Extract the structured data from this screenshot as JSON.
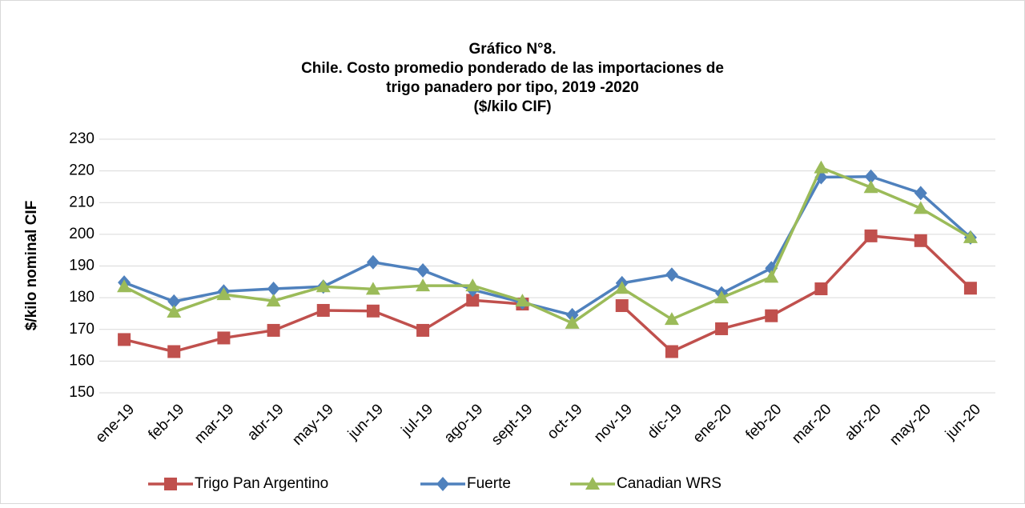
{
  "chart_data": {
    "type": "line",
    "title": [
      "Gráfico N°8.",
      "Chile. Costo promedio ponderado de las importaciones de",
      "trigo panadero por tipo, 2019 -2020",
      "($/kilo CIF)"
    ],
    "y_label": "$/kilo nominal CIF",
    "categories": [
      "ene-19",
      "feb-19",
      "mar-19",
      "abr-19",
      "may-19",
      "jun-19",
      "jul-19",
      "ago-19",
      "sept-19",
      "oct-19",
      "nov-19",
      "dic-19",
      "ene-20",
      "feb-20",
      "mar-20",
      "abr-20",
      "may-20",
      "jun-20"
    ],
    "series": [
      {
        "name": "Trigo Pan Argentino",
        "color": "#c0504d",
        "marker": "square",
        "values": [
          166.8,
          163,
          167.3,
          169.7,
          176,
          175.8,
          169.7,
          179.2,
          178,
          null,
          177.5,
          163,
          170.2,
          174.3,
          182.8,
          199.5,
          198,
          183
        ]
      },
      {
        "name": "Fuerte",
        "color": "#4f81bd",
        "marker": "diamond",
        "values": [
          184.8,
          178.8,
          182,
          182.8,
          183.5,
          191.2,
          188.6,
          182.5,
          178.5,
          174.5,
          184.6,
          187.3,
          181.4,
          189.3,
          218,
          218.2,
          213,
          199
        ]
      },
      {
        "name": "Canadian WRS",
        "color": "#9bbb59",
        "marker": "triangle",
        "values": [
          183.5,
          175.5,
          181,
          179,
          183.5,
          182.7,
          183.8,
          183.8,
          179,
          172,
          183,
          173.2,
          180,
          186.5,
          221,
          214.8,
          208.2,
          199
        ]
      }
    ],
    "ylim": [
      150,
      230
    ],
    "yticks": [
      150,
      160,
      170,
      180,
      190,
      200,
      210,
      220,
      230
    ],
    "grid": true,
    "legend": "bottom"
  }
}
